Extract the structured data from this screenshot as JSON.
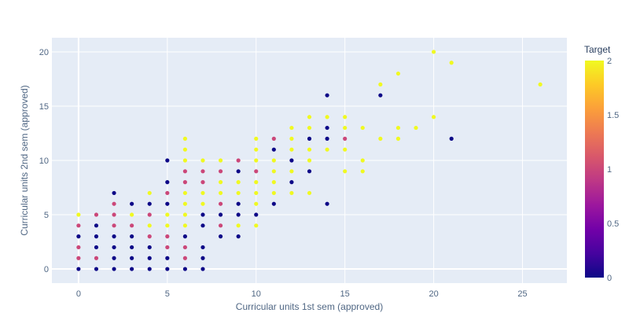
{
  "chart_data": {
    "type": "scatter",
    "xlabel": "Curricular units 1st sem (approved)",
    "ylabel": "Curricular units 2nd sem (approved)",
    "xlim": [
      -1.5,
      27.5
    ],
    "ylim": [
      -1.3,
      21.3
    ],
    "x_ticks": [
      0,
      5,
      10,
      15,
      20,
      25
    ],
    "y_ticks": [
      0,
      5,
      10,
      15,
      20
    ],
    "grid": true,
    "colorscale": [
      "#0d0887",
      "#46039f",
      "#7201a8",
      "#9c179e",
      "#bd3786",
      "#d8576b",
      "#ed7953",
      "#fb9f3a",
      "#fdca26",
      "#f0f921"
    ],
    "colorbar": {
      "title": "Target",
      "range": [
        0,
        2
      ],
      "ticks": [
        "0",
        "0.5",
        "1",
        "1.5",
        "2"
      ]
    },
    "points": [
      [
        0,
        0,
        0
      ],
      [
        0,
        1,
        1
      ],
      [
        0,
        2,
        1
      ],
      [
        0,
        3,
        0
      ],
      [
        0,
        4,
        1
      ],
      [
        0,
        5,
        2
      ],
      [
        1,
        0,
        0
      ],
      [
        1,
        1,
        1
      ],
      [
        1,
        2,
        0
      ],
      [
        1,
        3,
        0
      ],
      [
        1,
        4,
        0
      ],
      [
        1,
        5,
        1
      ],
      [
        2,
        0,
        0
      ],
      [
        2,
        1,
        0
      ],
      [
        2,
        2,
        0
      ],
      [
        2,
        3,
        0
      ],
      [
        2,
        4,
        1
      ],
      [
        2,
        5,
        1
      ],
      [
        2,
        6,
        1
      ],
      [
        2,
        7,
        0
      ],
      [
        3,
        0,
        0
      ],
      [
        3,
        1,
        0
      ],
      [
        3,
        2,
        0
      ],
      [
        3,
        3,
        0
      ],
      [
        3,
        4,
        1
      ],
      [
        3,
        5,
        2
      ],
      [
        3,
        6,
        0
      ],
      [
        4,
        0,
        0
      ],
      [
        4,
        1,
        0
      ],
      [
        4,
        2,
        0
      ],
      [
        4,
        3,
        1
      ],
      [
        4,
        4,
        2
      ],
      [
        4,
        5,
        1
      ],
      [
        4,
        6,
        0
      ],
      [
        4,
        7,
        2
      ],
      [
        5,
        0,
        0
      ],
      [
        5,
        1,
        0
      ],
      [
        5,
        2,
        1
      ],
      [
        5,
        3,
        1
      ],
      [
        5,
        4,
        2
      ],
      [
        5,
        5,
        2
      ],
      [
        5,
        6,
        0
      ],
      [
        5,
        7,
        1
      ],
      [
        5,
        8,
        0
      ],
      [
        5,
        10,
        0
      ],
      [
        6,
        0,
        0
      ],
      [
        6,
        1,
        1
      ],
      [
        6,
        2,
        1
      ],
      [
        6,
        3,
        0
      ],
      [
        6,
        4,
        2
      ],
      [
        6,
        5,
        2
      ],
      [
        6,
        6,
        2
      ],
      [
        6,
        7,
        2
      ],
      [
        6,
        8,
        1
      ],
      [
        6,
        9,
        1
      ],
      [
        6,
        10,
        2
      ],
      [
        6,
        11,
        2
      ],
      [
        6,
        12,
        2
      ],
      [
        7,
        0,
        0
      ],
      [
        7,
        1,
        0
      ],
      [
        7,
        2,
        0
      ],
      [
        7,
        4,
        0
      ],
      [
        7,
        5,
        0
      ],
      [
        7,
        6,
        2
      ],
      [
        7,
        7,
        2
      ],
      [
        7,
        8,
        1
      ],
      [
        7,
        9,
        1
      ],
      [
        7,
        10,
        2
      ],
      [
        8,
        3,
        0
      ],
      [
        8,
        4,
        1
      ],
      [
        8,
        5,
        0
      ],
      [
        8,
        6,
        1
      ],
      [
        8,
        7,
        2
      ],
      [
        8,
        8,
        2
      ],
      [
        8,
        9,
        1
      ],
      [
        8,
        10,
        2
      ],
      [
        9,
        3,
        0
      ],
      [
        9,
        4,
        2
      ],
      [
        9,
        5,
        0
      ],
      [
        9,
        6,
        0
      ],
      [
        9,
        7,
        2
      ],
      [
        9,
        8,
        2
      ],
      [
        9,
        9,
        0
      ],
      [
        9,
        10,
        1
      ],
      [
        10,
        4,
        2
      ],
      [
        10,
        5,
        0
      ],
      [
        10,
        6,
        2
      ],
      [
        10,
        7,
        2
      ],
      [
        10,
        8,
        2
      ],
      [
        10,
        9,
        1
      ],
      [
        10,
        10,
        2
      ],
      [
        10,
        11,
        2
      ],
      [
        10,
        12,
        2
      ],
      [
        11,
        6,
        0
      ],
      [
        11,
        7,
        2
      ],
      [
        11,
        8,
        2
      ],
      [
        11,
        9,
        2
      ],
      [
        11,
        10,
        2
      ],
      [
        11,
        11,
        0
      ],
      [
        11,
        12,
        1
      ],
      [
        12,
        7,
        2
      ],
      [
        12,
        8,
        0
      ],
      [
        12,
        9,
        2
      ],
      [
        12,
        10,
        0
      ],
      [
        12,
        11,
        2
      ],
      [
        12,
        12,
        2
      ],
      [
        12,
        13,
        2
      ],
      [
        13,
        7,
        2
      ],
      [
        13,
        9,
        0
      ],
      [
        13,
        10,
        2
      ],
      [
        13,
        11,
        2
      ],
      [
        13,
        12,
        0
      ],
      [
        13,
        13,
        2
      ],
      [
        13,
        14,
        2
      ],
      [
        14,
        6,
        0
      ],
      [
        14,
        11,
        2
      ],
      [
        14,
        12,
        0
      ],
      [
        14,
        13,
        0
      ],
      [
        14,
        14,
        2
      ],
      [
        14,
        16,
        0
      ],
      [
        15,
        9,
        2
      ],
      [
        15,
        11,
        2
      ],
      [
        15,
        12,
        1
      ],
      [
        15,
        13,
        2
      ],
      [
        15,
        14,
        2
      ],
      [
        16,
        9,
        2
      ],
      [
        16,
        10,
        2
      ],
      [
        16,
        13,
        2
      ],
      [
        17,
        12,
        2
      ],
      [
        17,
        16,
        0
      ],
      [
        17,
        17,
        2
      ],
      [
        18,
        12,
        2
      ],
      [
        18,
        13,
        2
      ],
      [
        18,
        18,
        2
      ],
      [
        19,
        13,
        2
      ],
      [
        20,
        14,
        2
      ],
      [
        20,
        20,
        2
      ],
      [
        21,
        12,
        0
      ],
      [
        21,
        19,
        2
      ],
      [
        26,
        17,
        2
      ]
    ]
  }
}
